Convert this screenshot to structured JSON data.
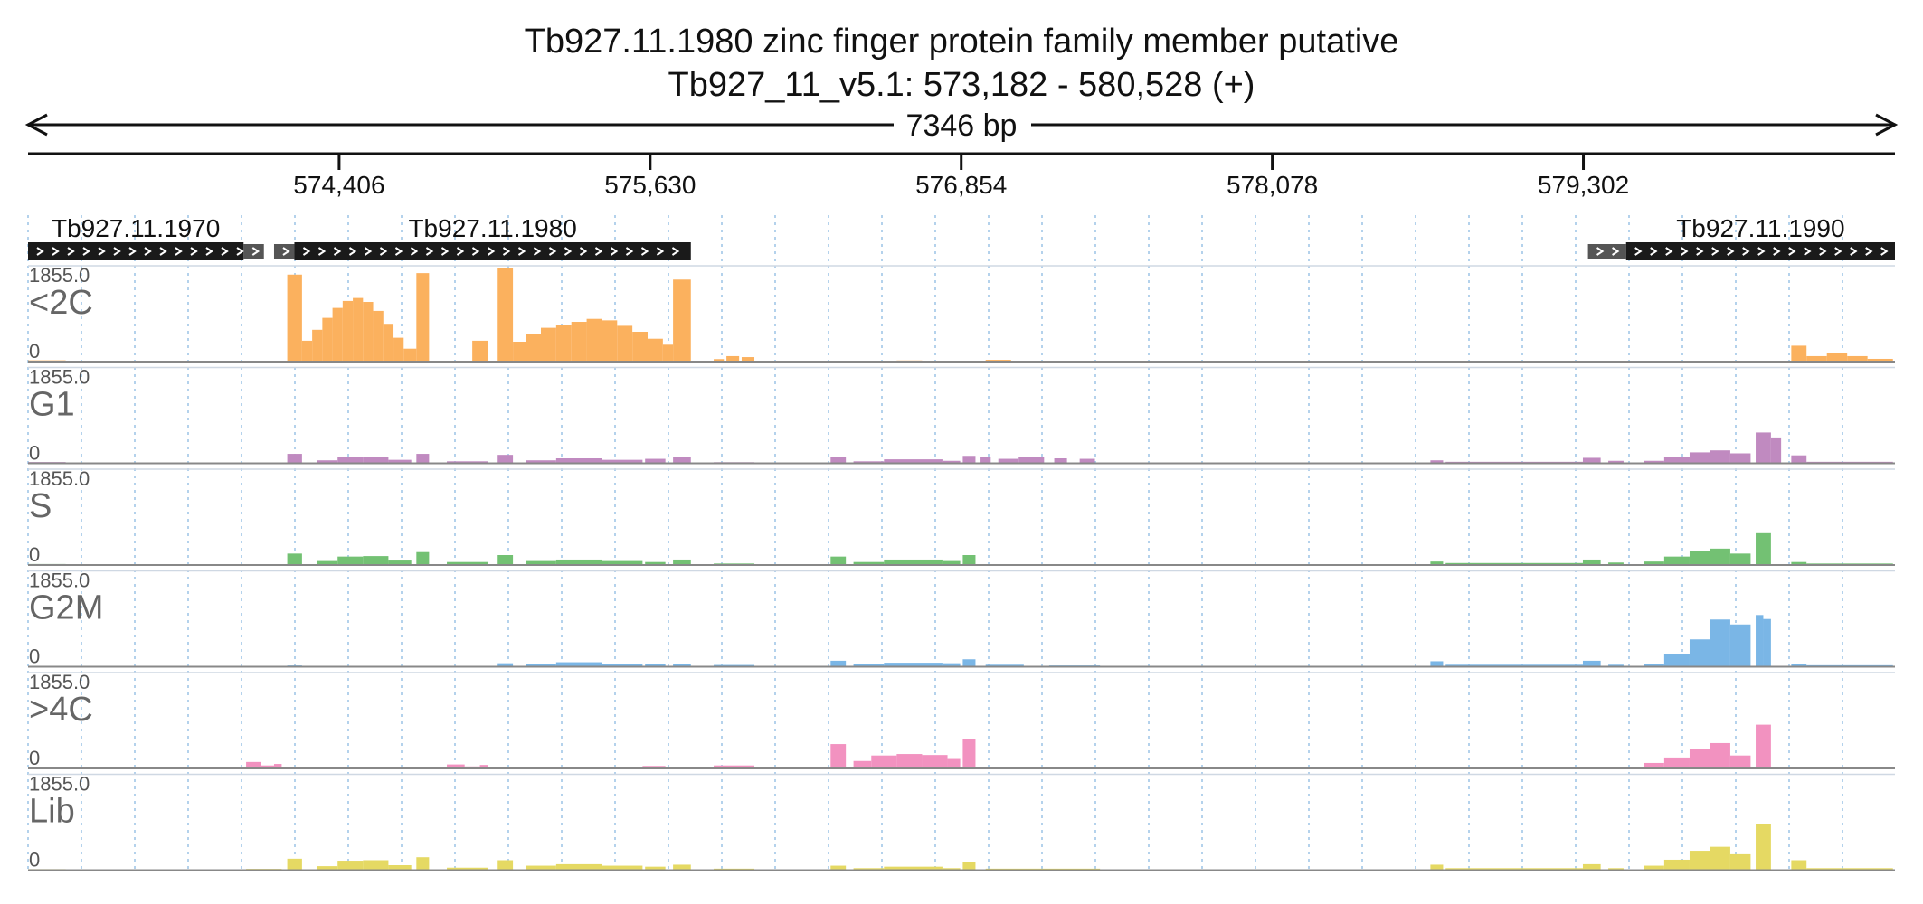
{
  "title": {
    "line1": "Tb927.11.1980  zinc finger protein family member  putative",
    "line2": "Tb927_11_v5.1: 573,182 - 580,528 (+)",
    "span_label": "7346 bp"
  },
  "chart_data": {
    "type": "area",
    "title": "Tb927.11.1980  zinc finger protein family member  putative",
    "region": {
      "chrom": "Tb927_11_v5.1",
      "start": 573182,
      "end": 580528,
      "strand": "+"
    },
    "ruler_ticks": [
      {
        "pos": 574406,
        "label": "574,406"
      },
      {
        "pos": 575630,
        "label": "575,630"
      },
      {
        "pos": 576854,
        "label": "576,854"
      },
      {
        "pos": 578078,
        "label": "578,078"
      },
      {
        "pos": 579302,
        "label": "579,302"
      }
    ],
    "genes": [
      {
        "name": "Tb927.11.1970",
        "start": 573182,
        "end": 574030,
        "utr_end": 574110
      },
      {
        "name": "Tb927.11.1980",
        "start": 574230,
        "end": 575790,
        "utr_start": 574150
      },
      {
        "name": "Tb927.11.1990",
        "start": 579470,
        "end": 580528,
        "utr_start": 579320
      }
    ],
    "tracks": [
      {
        "name": "<2C",
        "ymin": "0",
        "ymax": "1855.0",
        "color": "#fbb15e",
        "segments": [
          [
            573182,
            573330,
            25
          ],
          [
            574202,
            574260,
            1750
          ],
          [
            574260,
            574300,
            420
          ],
          [
            574300,
            574340,
            640
          ],
          [
            574340,
            574380,
            880
          ],
          [
            574380,
            574420,
            1080
          ],
          [
            574420,
            574460,
            1220
          ],
          [
            574460,
            574500,
            1280
          ],
          [
            574500,
            574540,
            1200
          ],
          [
            574540,
            574580,
            1020
          ],
          [
            574580,
            574620,
            760
          ],
          [
            574620,
            574660,
            480
          ],
          [
            574660,
            574710,
            260
          ],
          [
            574710,
            574760,
            1780
          ],
          [
            574930,
            574990,
            420
          ],
          [
            575030,
            575090,
            1880
          ],
          [
            575090,
            575140,
            400
          ],
          [
            575140,
            575200,
            560
          ],
          [
            575200,
            575260,
            680
          ],
          [
            575260,
            575320,
            740
          ],
          [
            575320,
            575380,
            800
          ],
          [
            575380,
            575440,
            860
          ],
          [
            575440,
            575500,
            830
          ],
          [
            575500,
            575560,
            720
          ],
          [
            575560,
            575620,
            600
          ],
          [
            575620,
            575680,
            460
          ],
          [
            575680,
            575720,
            340
          ],
          [
            575720,
            575790,
            1650
          ],
          [
            575880,
            575920,
            50
          ],
          [
            575930,
            575980,
            110
          ],
          [
            575990,
            576040,
            90
          ],
          [
            576600,
            576700,
            22
          ],
          [
            576950,
            577050,
            35
          ],
          [
            580120,
            580180,
            320
          ],
          [
            580180,
            580260,
            110
          ],
          [
            580260,
            580340,
            170
          ],
          [
            580340,
            580420,
            110
          ],
          [
            580420,
            580520,
            55
          ]
        ]
      },
      {
        "name": "G1",
        "ymin": "0",
        "ymax": "1855.0",
        "color": "#c08ac0",
        "segments": [
          [
            573182,
            573330,
            25
          ],
          [
            574202,
            574260,
            190
          ],
          [
            574320,
            574400,
            60
          ],
          [
            574400,
            574500,
            120
          ],
          [
            574500,
            574600,
            130
          ],
          [
            574600,
            574690,
            70
          ],
          [
            574710,
            574760,
            190
          ],
          [
            574830,
            574990,
            40
          ],
          [
            575030,
            575090,
            170
          ],
          [
            575140,
            575260,
            60
          ],
          [
            575260,
            575440,
            100
          ],
          [
            575440,
            575600,
            70
          ],
          [
            575610,
            575690,
            90
          ],
          [
            575720,
            575790,
            130
          ],
          [
            575880,
            576040,
            22
          ],
          [
            576340,
            576400,
            120
          ],
          [
            576430,
            576550,
            40
          ],
          [
            576550,
            576780,
            80
          ],
          [
            576780,
            576850,
            50
          ],
          [
            576860,
            576910,
            150
          ],
          [
            576930,
            576970,
            130
          ],
          [
            577000,
            577080,
            90
          ],
          [
            577080,
            577180,
            130
          ],
          [
            577220,
            577270,
            100
          ],
          [
            577320,
            577380,
            90
          ],
          [
            578700,
            578750,
            60
          ],
          [
            578760,
            579300,
            30
          ],
          [
            579300,
            579370,
            110
          ],
          [
            579400,
            579460,
            50
          ],
          [
            579540,
            579620,
            50
          ],
          [
            579620,
            579720,
            130
          ],
          [
            579720,
            579800,
            220
          ],
          [
            579800,
            579880,
            260
          ],
          [
            579880,
            579960,
            200
          ],
          [
            579980,
            580040,
            620
          ],
          [
            580040,
            580080,
            520
          ],
          [
            580120,
            580180,
            160
          ],
          [
            580180,
            580520,
            30
          ]
        ]
      },
      {
        "name": "S",
        "ymin": "0",
        "ymax": "1855.0",
        "color": "#73c173",
        "segments": [
          [
            573182,
            573330,
            20
          ],
          [
            574040,
            574180,
            15
          ],
          [
            574202,
            574260,
            230
          ],
          [
            574320,
            574400,
            80
          ],
          [
            574400,
            574500,
            170
          ],
          [
            574500,
            574600,
            180
          ],
          [
            574600,
            574690,
            90
          ],
          [
            574710,
            574760,
            260
          ],
          [
            574830,
            574990,
            60
          ],
          [
            575030,
            575090,
            200
          ],
          [
            575140,
            575260,
            80
          ],
          [
            575260,
            575440,
            110
          ],
          [
            575440,
            575600,
            80
          ],
          [
            575610,
            575690,
            60
          ],
          [
            575720,
            575790,
            110
          ],
          [
            575880,
            576040,
            30
          ],
          [
            576340,
            576400,
            170
          ],
          [
            576430,
            576550,
            60
          ],
          [
            576550,
            576780,
            110
          ],
          [
            576780,
            576850,
            80
          ],
          [
            576860,
            576910,
            200
          ],
          [
            578700,
            578750,
            70
          ],
          [
            578760,
            579300,
            40
          ],
          [
            579300,
            579370,
            110
          ],
          [
            579400,
            579460,
            50
          ],
          [
            579540,
            579620,
            70
          ],
          [
            579620,
            579720,
            170
          ],
          [
            579720,
            579800,
            290
          ],
          [
            579800,
            579880,
            330
          ],
          [
            579880,
            579960,
            230
          ],
          [
            579980,
            580040,
            640
          ],
          [
            580120,
            580180,
            60
          ],
          [
            580180,
            580520,
            30
          ]
        ]
      },
      {
        "name": "G2M",
        "ymin": "0",
        "ymax": "1855.0",
        "color": "#7ab6e6",
        "segments": [
          [
            573182,
            573330,
            15
          ],
          [
            574202,
            574260,
            25
          ],
          [
            574400,
            574700,
            15
          ],
          [
            575030,
            575090,
            70
          ],
          [
            575140,
            575260,
            60
          ],
          [
            575260,
            575440,
            90
          ],
          [
            575440,
            575600,
            60
          ],
          [
            575610,
            575690,
            50
          ],
          [
            575720,
            575790,
            60
          ],
          [
            575880,
            576040,
            35
          ],
          [
            576340,
            576400,
            120
          ],
          [
            576430,
            576550,
            60
          ],
          [
            576550,
            576780,
            80
          ],
          [
            576780,
            576850,
            70
          ],
          [
            576860,
            576910,
            150
          ],
          [
            576950,
            577100,
            40
          ],
          [
            577200,
            577400,
            25
          ],
          [
            578700,
            578750,
            110
          ],
          [
            578760,
            579300,
            40
          ],
          [
            579300,
            579370,
            120
          ],
          [
            579400,
            579460,
            40
          ],
          [
            579540,
            579620,
            60
          ],
          [
            579620,
            579720,
            260
          ],
          [
            579720,
            579800,
            550
          ],
          [
            579800,
            579880,
            950
          ],
          [
            579880,
            579960,
            850
          ],
          [
            579980,
            580010,
            1040
          ],
          [
            580010,
            580040,
            960
          ],
          [
            580120,
            580180,
            60
          ],
          [
            580180,
            580520,
            30
          ]
        ]
      },
      {
        "name": ">4C",
        "ymin": "0",
        "ymax": "1855.0",
        "color": "#f292c0",
        "segments": [
          [
            574040,
            574100,
            130
          ],
          [
            574100,
            574150,
            60
          ],
          [
            574150,
            574180,
            90
          ],
          [
            574830,
            574900,
            80
          ],
          [
            574900,
            574960,
            40
          ],
          [
            574960,
            574990,
            70
          ],
          [
            575600,
            575690,
            50
          ],
          [
            575880,
            576040,
            60
          ],
          [
            576340,
            576400,
            490
          ],
          [
            576430,
            576500,
            150
          ],
          [
            576500,
            576600,
            260
          ],
          [
            576600,
            576700,
            290
          ],
          [
            576700,
            576800,
            270
          ],
          [
            576800,
            576850,
            190
          ],
          [
            576860,
            576910,
            590
          ],
          [
            579540,
            579620,
            110
          ],
          [
            579620,
            579720,
            220
          ],
          [
            579720,
            579800,
            400
          ],
          [
            579800,
            579880,
            510
          ],
          [
            579880,
            579960,
            260
          ],
          [
            579980,
            580040,
            880
          ]
        ]
      },
      {
        "name": "Lib",
        "ymin": "0",
        "ymax": "1855.0",
        "color": "#e5d963",
        "segments": [
          [
            573182,
            573330,
            20
          ],
          [
            574040,
            574180,
            25
          ],
          [
            574202,
            574260,
            230
          ],
          [
            574320,
            574400,
            80
          ],
          [
            574400,
            574500,
            190
          ],
          [
            574500,
            574600,
            200
          ],
          [
            574600,
            574690,
            100
          ],
          [
            574710,
            574760,
            260
          ],
          [
            574830,
            574990,
            50
          ],
          [
            575030,
            575090,
            200
          ],
          [
            575140,
            575260,
            90
          ],
          [
            575260,
            575440,
            120
          ],
          [
            575440,
            575600,
            90
          ],
          [
            575610,
            575690,
            70
          ],
          [
            575720,
            575790,
            110
          ],
          [
            575880,
            576040,
            30
          ],
          [
            576340,
            576400,
            90
          ],
          [
            576430,
            576550,
            40
          ],
          [
            576550,
            576780,
            70
          ],
          [
            576780,
            576850,
            40
          ],
          [
            576860,
            576910,
            160
          ],
          [
            576950,
            577400,
            30
          ],
          [
            578700,
            578750,
            110
          ],
          [
            578760,
            579300,
            40
          ],
          [
            579300,
            579370,
            120
          ],
          [
            579400,
            579460,
            40
          ],
          [
            579540,
            579620,
            90
          ],
          [
            579620,
            579720,
            210
          ],
          [
            579720,
            579800,
            390
          ],
          [
            579800,
            579880,
            470
          ],
          [
            579880,
            579960,
            320
          ],
          [
            579980,
            580040,
            930
          ],
          [
            580120,
            580180,
            200
          ],
          [
            580180,
            580520,
            40
          ]
        ]
      }
    ]
  }
}
